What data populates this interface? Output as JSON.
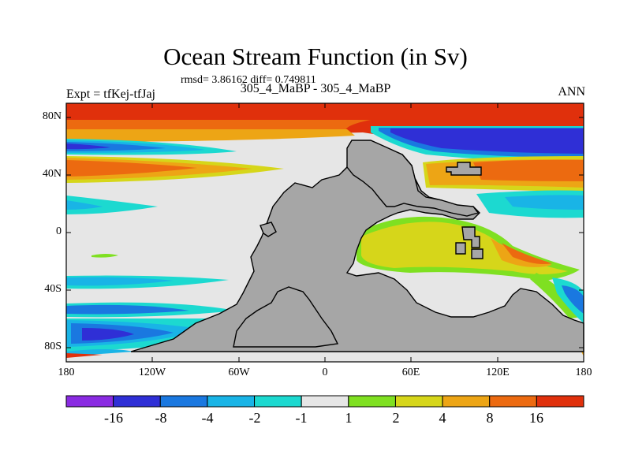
{
  "title": "Ocean Stream Function (in Sv)",
  "stats": "rmsd= 3.86162 diff= 0.749811",
  "subtitle": "305_4_MaBP - 305_4_MaBP",
  "expt": "Expt = tfKej-tfJaj",
  "season": "ANN",
  "lat_ticks": [
    "80N",
    "40N",
    "0",
    "40S",
    "80S"
  ],
  "lon_ticks": [
    "180",
    "120W",
    "60W",
    "0",
    "60E",
    "120E",
    "180"
  ],
  "colorbar": {
    "labels": [
      "-16",
      "-8",
      "-4",
      "-2",
      "-1",
      "1",
      "2",
      "4",
      "8",
      "16"
    ],
    "colors": [
      "#8a2be2",
      "#2f2fd6",
      "#1a78e0",
      "#19b4e6",
      "#1cd9d0",
      "#e6e6e6",
      "#7fe021",
      "#d6d61a",
      "#eda515",
      "#ec6a10",
      "#e0300c"
    ]
  },
  "colors": {
    "land": "#a6a6a6",
    "neutral": "#e6e6e6"
  }
}
